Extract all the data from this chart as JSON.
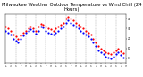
{
  "title": "Milwaukee Weather Outdoor Temperature vs Wind Chill (24 Hours)",
  "title_fontsize": 3.8,
  "background_color": "#ffffff",
  "plot_bg_color": "#ffffff",
  "grid_color": "#999999",
  "ylim": [
    -5,
    45
  ],
  "xlim": [
    0,
    48
  ],
  "x_ticks": [
    0,
    2,
    4,
    6,
    8,
    10,
    12,
    14,
    16,
    18,
    20,
    22,
    24,
    26,
    28,
    30,
    32,
    34,
    36,
    38,
    40,
    42,
    44,
    46,
    48
  ],
  "x_tick_labels": [
    "1",
    "3",
    "5",
    "7",
    "9",
    "1",
    "3",
    "5",
    "7",
    "9",
    "1",
    "3",
    "5",
    "7",
    "9",
    "1",
    "3",
    "5",
    "7",
    "9",
    "1",
    "3",
    "5",
    "7",
    "9"
  ],
  "y_ticks": [
    0,
    10,
    20,
    30,
    40
  ],
  "y_tick_labels": [
    "0",
    "10",
    "20",
    "30",
    "40"
  ],
  "vgrid_positions": [
    4,
    8,
    12,
    16,
    20,
    24,
    28,
    32,
    36,
    40,
    44
  ],
  "temp_color": "#ff0000",
  "windchill_color": "#0000ff",
  "black_color": "#000000",
  "marker_size": 2.5,
  "temp_x": [
    0,
    1,
    2,
    3,
    4,
    5,
    6,
    7,
    8,
    9,
    10,
    11,
    12,
    13,
    14,
    15,
    16,
    17,
    18,
    19,
    20,
    21,
    22,
    23,
    24,
    25,
    26,
    27,
    28,
    29,
    30,
    31,
    32,
    33,
    34,
    35,
    36,
    37,
    38,
    39,
    40,
    41,
    42,
    43,
    44,
    45,
    46,
    47
  ],
  "temp_y": [
    32,
    30,
    28,
    24,
    22,
    20,
    23,
    26,
    28,
    30,
    32,
    30,
    28,
    32,
    35,
    34,
    32,
    30,
    29,
    28,
    30,
    32,
    34,
    36,
    40,
    42,
    40,
    38,
    36,
    34,
    32,
    30,
    28,
    26,
    24,
    20,
    16,
    12,
    10,
    8,
    6,
    5,
    4,
    6,
    8,
    10,
    7,
    5
  ],
  "wc_x": [
    0,
    1,
    2,
    3,
    4,
    5,
    6,
    7,
    8,
    9,
    10,
    11,
    12,
    13,
    14,
    15,
    16,
    17,
    18,
    19,
    20,
    21,
    22,
    23,
    24,
    25,
    26,
    27,
    28,
    29,
    30,
    31,
    32,
    33,
    34,
    35,
    36,
    37,
    38,
    39,
    40,
    41,
    42,
    43,
    44,
    45,
    46,
    47
  ],
  "wc_y": [
    28,
    26,
    24,
    20,
    18,
    16,
    20,
    23,
    26,
    28,
    29,
    28,
    25,
    28,
    32,
    31,
    28,
    26,
    25,
    24,
    26,
    28,
    30,
    32,
    36,
    38,
    36,
    34,
    32,
    30,
    28,
    26,
    24,
    22,
    20,
    16,
    12,
    8,
    6,
    4,
    2,
    1,
    0,
    2,
    4,
    6,
    3,
    1
  ]
}
